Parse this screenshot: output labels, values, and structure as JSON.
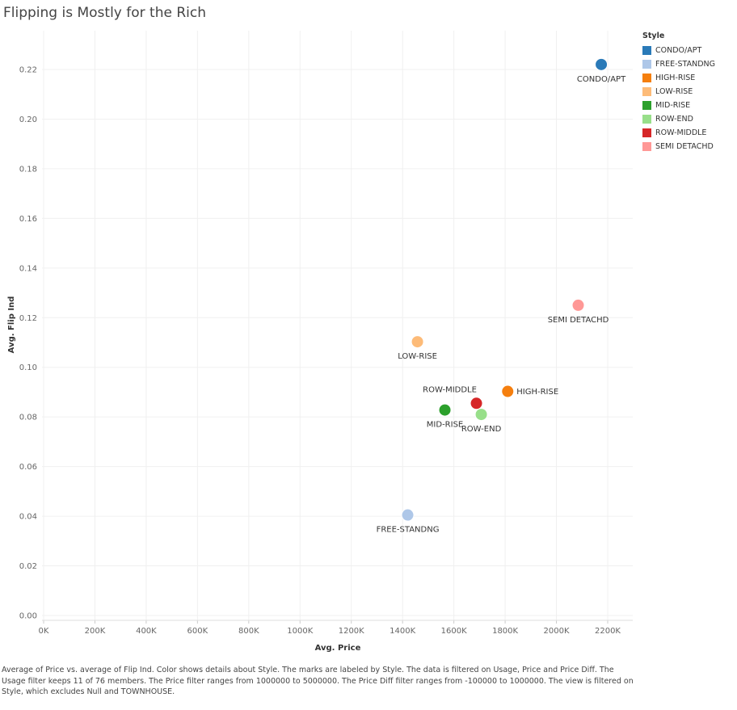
{
  "title": "Flipping is Mostly for the Rich",
  "caption": "Average of Price vs. average of Flip Ind.  Color shows details about Style.  The marks are labeled by Style. The data is filtered on Usage, Price and Price Diff. The Usage filter keeps 11 of 76 members. The Price filter ranges from 1000000 to 5000000. The Price Diff filter ranges from -100000 to 1000000. The view is filtered on Style, which excludes Null and TOWNHOUSE.",
  "legend": {
    "title": "Style",
    "items": [
      {
        "label": "CONDO/APT",
        "color": "#2a7ab8"
      },
      {
        "label": "FREE-STANDNG",
        "color": "#aec7e8"
      },
      {
        "label": "HIGH-RISE",
        "color": "#f57f0e"
      },
      {
        "label": "LOW-RISE",
        "color": "#fdbb78"
      },
      {
        "label": "MID-RISE",
        "color": "#2ca02c"
      },
      {
        "label": "ROW-END",
        "color": "#98df8a"
      },
      {
        "label": "ROW-MIDDLE",
        "color": "#d62728"
      },
      {
        "label": "SEMI DETACHD",
        "color": "#ff9896"
      }
    ]
  },
  "chart_data": {
    "type": "scatter",
    "xlabel": "Avg. Price",
    "ylabel": "Avg. Flip Ind",
    "xlim": [
      0,
      2300000
    ],
    "ylim": [
      0,
      0.23
    ],
    "x_ticks": [
      0,
      200000,
      400000,
      600000,
      800000,
      1000000,
      1200000,
      1400000,
      1600000,
      1800000,
      2000000,
      2200000
    ],
    "x_tick_labels": [
      "0K",
      "200K",
      "400K",
      "600K",
      "800K",
      "1000K",
      "1200K",
      "1400K",
      "1600K",
      "1800K",
      "2000K",
      "2200K"
    ],
    "y_ticks": [
      0,
      0.02,
      0.04,
      0.06,
      0.08,
      0.1,
      0.12,
      0.14,
      0.16,
      0.18,
      0.2,
      0.22
    ],
    "y_tick_labels": [
      "0.00",
      "0.02",
      "0.04",
      "0.06",
      "0.08",
      "0.10",
      "0.12",
      "0.14",
      "0.16",
      "0.18",
      "0.20",
      "0.22"
    ],
    "grid": true,
    "legend_position": "right",
    "points": [
      {
        "label": "CONDO/APT",
        "x": 2175000,
        "y": 0.222,
        "color": "#2a7ab8",
        "label_position": "below"
      },
      {
        "label": "FREE-STANDNG",
        "x": 1420000,
        "y": 0.0405,
        "color": "#aec7e8",
        "label_position": "below"
      },
      {
        "label": "HIGH-RISE",
        "x": 1810000,
        "y": 0.0903,
        "color": "#f57f0e",
        "label_position": "right"
      },
      {
        "label": "LOW-RISE",
        "x": 1458000,
        "y": 0.1103,
        "color": "#fdbb78",
        "label_position": "below"
      },
      {
        "label": "MID-RISE",
        "x": 1565000,
        "y": 0.0828,
        "color": "#2ca02c",
        "label_position": "below"
      },
      {
        "label": "ROW-END",
        "x": 1707000,
        "y": 0.081,
        "color": "#98df8a",
        "label_position": "below"
      },
      {
        "label": "ROW-MIDDLE",
        "x": 1688000,
        "y": 0.0855,
        "color": "#d62728",
        "label_position": "above"
      },
      {
        "label": "SEMI DETACHD",
        "x": 2085000,
        "y": 0.125,
        "color": "#ff9896",
        "label_position": "below"
      }
    ]
  }
}
